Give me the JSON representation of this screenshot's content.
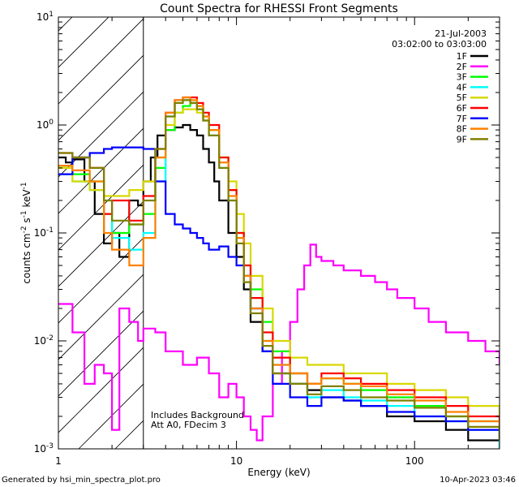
{
  "chart_data": {
    "type": "line",
    "title": "Count Spectra for RHESSI Front Segments",
    "xlabel": "Energy (keV)",
    "ylabel_parts": [
      "counts cm",
      "-2",
      " s",
      "-1",
      " keV",
      "-1"
    ],
    "xscale": "log",
    "yscale": "log",
    "xlim": [
      1,
      300
    ],
    "ylim": [
      0.001,
      10
    ],
    "x_ticks": [
      {
        "value": 1,
        "label": "1"
      },
      {
        "value": 10,
        "label": "10"
      },
      {
        "value": 100,
        "label": "100"
      }
    ],
    "y_ticks": [
      {
        "value": 0.001,
        "base": "10",
        "exp": "-3"
      },
      {
        "value": 0.01,
        "base": "10",
        "exp": "-2"
      },
      {
        "value": 0.1,
        "base": "10",
        "exp": "-1"
      },
      {
        "value": 1,
        "base": "10",
        "exp": "0"
      },
      {
        "value": 10,
        "base": "10",
        "exp": "1"
      }
    ],
    "hatched_region_x": [
      1,
      3
    ],
    "legend": {
      "placement": "top-right",
      "date": "21-Jul-2003",
      "time_range": "03:02:00 to 03:03:00"
    },
    "annotations": [
      "Includes Background",
      "Att A0, FDecim 3"
    ],
    "series": [
      {
        "name": "1F",
        "color": "#000000",
        "x": [
          1.0,
          1.1,
          1.2,
          1.4,
          1.6,
          1.8,
          2.0,
          2.2,
          2.5,
          2.8,
          3.0,
          3.3,
          3.6,
          4.0,
          4.5,
          5.0,
          5.5,
          6.0,
          6.5,
          7.0,
          7.5,
          8.0,
          9.0,
          10,
          11,
          12,
          14,
          16,
          20,
          25,
          30,
          40,
          50,
          70,
          100,
          150,
          200,
          300
        ],
        "y": [
          0.5,
          0.45,
          0.48,
          0.3,
          0.15,
          0.08,
          0.1,
          0.06,
          0.2,
          0.18,
          0.3,
          0.5,
          0.8,
          0.9,
          0.95,
          1.0,
          0.9,
          0.8,
          0.6,
          0.45,
          0.3,
          0.2,
          0.1,
          0.06,
          0.03,
          0.015,
          0.008,
          0.005,
          0.004,
          0.0035,
          0.003,
          0.0028,
          0.0025,
          0.002,
          0.0018,
          0.0015,
          0.0012,
          0.001
        ]
      },
      {
        "name": "2F",
        "color": "#ff00ff",
        "x": [
          1.0,
          1.2,
          1.4,
          1.6,
          1.8,
          2.0,
          2.2,
          2.5,
          2.8,
          3.0,
          3.5,
          4.0,
          5.0,
          6.0,
          7.0,
          8.0,
          9.0,
          10,
          11,
          12,
          13,
          14,
          16,
          18,
          20,
          22,
          24,
          26,
          28,
          30,
          35,
          40,
          50,
          60,
          70,
          80,
          100,
          120,
          150,
          200,
          250,
          300
        ],
        "y": [
          0.022,
          0.012,
          0.004,
          0.006,
          0.005,
          0.0015,
          0.02,
          0.015,
          0.01,
          0.013,
          0.012,
          0.008,
          0.006,
          0.007,
          0.005,
          0.003,
          0.004,
          0.003,
          0.002,
          0.0015,
          0.0012,
          0.002,
          0.004,
          0.008,
          0.015,
          0.03,
          0.05,
          0.078,
          0.06,
          0.055,
          0.05,
          0.045,
          0.04,
          0.035,
          0.03,
          0.025,
          0.02,
          0.015,
          0.012,
          0.01,
          0.008,
          0.006
        ]
      },
      {
        "name": "3F",
        "color": "#00ff00",
        "x": [
          1.0,
          1.2,
          1.5,
          1.8,
          2.0,
          2.5,
          3.0,
          3.5,
          4.0,
          4.5,
          5.0,
          5.5,
          6.0,
          6.5,
          7.0,
          8.0,
          9.0,
          10,
          11,
          12,
          14,
          16,
          20,
          25,
          30,
          40,
          50,
          70,
          100,
          150,
          200,
          300
        ],
        "y": [
          0.4,
          0.35,
          0.3,
          0.15,
          0.1,
          0.12,
          0.15,
          0.4,
          0.9,
          1.3,
          1.5,
          1.6,
          1.5,
          1.2,
          0.9,
          0.5,
          0.25,
          0.1,
          0.05,
          0.03,
          0.015,
          0.008,
          0.005,
          0.004,
          0.0045,
          0.004,
          0.0035,
          0.003,
          0.0025,
          0.002,
          0.0018,
          0.0012
        ]
      },
      {
        "name": "4F",
        "color": "#00ffff",
        "x": [
          1.0,
          1.2,
          1.5,
          1.8,
          2.0,
          2.5,
          3.0,
          3.5,
          4.0,
          4.5,
          5.0,
          5.5,
          6.0,
          6.5,
          7.0,
          8.0,
          9.0,
          10,
          11,
          12,
          14,
          16,
          20,
          25,
          30,
          40,
          50,
          70,
          100,
          150,
          200,
          300
        ],
        "y": [
          0.35,
          0.3,
          0.25,
          0.15,
          0.09,
          0.07,
          0.1,
          0.3,
          1.2,
          1.6,
          1.7,
          1.6,
          1.4,
          1.1,
          0.8,
          0.4,
          0.2,
          0.09,
          0.04,
          0.02,
          0.01,
          0.006,
          0.004,
          0.003,
          0.0035,
          0.003,
          0.0028,
          0.0025,
          0.002,
          0.0018,
          0.0015,
          0.001
        ]
      },
      {
        "name": "5F",
        "color": "#d8d800",
        "x": [
          1.0,
          1.2,
          1.5,
          1.8,
          2.0,
          2.5,
          3.0,
          3.5,
          4.0,
          4.5,
          5.0,
          5.5,
          6.0,
          6.5,
          7.0,
          8.0,
          9.0,
          10,
          11,
          12,
          14,
          16,
          20,
          25,
          30,
          40,
          50,
          70,
          100,
          150,
          200,
          300
        ],
        "y": [
          0.4,
          0.3,
          0.25,
          0.22,
          0.22,
          0.25,
          0.3,
          0.5,
          1.0,
          1.3,
          1.4,
          1.4,
          1.3,
          1.1,
          0.9,
          0.5,
          0.3,
          0.15,
          0.08,
          0.04,
          0.02,
          0.01,
          0.007,
          0.006,
          0.006,
          0.005,
          0.005,
          0.004,
          0.0035,
          0.003,
          0.0025,
          0.002
        ]
      },
      {
        "name": "6F",
        "color": "#ff0000",
        "x": [
          1.0,
          1.2,
          1.5,
          1.8,
          2.0,
          2.5,
          3.0,
          3.5,
          4.0,
          4.5,
          5.0,
          5.5,
          6.0,
          6.5,
          7.0,
          8.0,
          9.0,
          10,
          11,
          12,
          14,
          16,
          20,
          25,
          30,
          40,
          50,
          70,
          100,
          150,
          200,
          300
        ],
        "y": [
          0.55,
          0.5,
          0.4,
          0.15,
          0.2,
          0.13,
          0.22,
          0.6,
          1.3,
          1.7,
          1.8,
          1.8,
          1.6,
          1.3,
          1.0,
          0.5,
          0.25,
          0.1,
          0.05,
          0.025,
          0.012,
          0.007,
          0.005,
          0.004,
          0.005,
          0.0045,
          0.004,
          0.0035,
          0.003,
          0.0025,
          0.002,
          0.0015
        ]
      },
      {
        "name": "7F",
        "color": "#0000ff",
        "x": [
          1.0,
          1.2,
          1.5,
          1.8,
          2.0,
          2.5,
          3.0,
          3.5,
          4.0,
          4.5,
          5.0,
          5.5,
          6.0,
          6.5,
          7.0,
          8.0,
          9.0,
          10,
          11,
          12,
          14,
          16,
          20,
          25,
          30,
          40,
          50,
          70,
          100,
          150,
          200,
          300
        ],
        "y": [
          0.35,
          0.5,
          0.55,
          0.6,
          0.62,
          0.62,
          0.6,
          0.3,
          0.15,
          0.12,
          0.11,
          0.1,
          0.09,
          0.08,
          0.07,
          0.075,
          0.06,
          0.05,
          0.04,
          0.02,
          0.008,
          0.004,
          0.003,
          0.0025,
          0.003,
          0.0028,
          0.0025,
          0.0022,
          0.002,
          0.0018,
          0.0015,
          0.0012
        ]
      },
      {
        "name": "8F",
        "color": "#ff8000",
        "x": [
          1.0,
          1.2,
          1.5,
          1.8,
          2.0,
          2.5,
          3.0,
          3.5,
          4.0,
          4.5,
          5.0,
          5.5,
          6.0,
          6.5,
          7.0,
          8.0,
          9.0,
          10,
          11,
          12,
          14,
          16,
          20,
          25,
          30,
          40,
          50,
          70,
          100,
          150,
          200,
          300
        ],
        "y": [
          0.42,
          0.38,
          0.3,
          0.1,
          0.07,
          0.05,
          0.09,
          0.5,
          1.3,
          1.7,
          1.8,
          1.7,
          1.5,
          1.2,
          0.9,
          0.45,
          0.22,
          0.09,
          0.04,
          0.02,
          0.01,
          0.006,
          0.005,
          0.004,
          0.0045,
          0.004,
          0.0038,
          0.0032,
          0.0028,
          0.0022,
          0.0018,
          0.0013
        ]
      },
      {
        "name": "9F",
        "color": "#808000",
        "x": [
          1.0,
          1.2,
          1.5,
          1.8,
          2.0,
          2.5,
          3.0,
          3.5,
          4.0,
          4.5,
          5.0,
          5.5,
          6.0,
          6.5,
          7.0,
          8.0,
          9.0,
          10,
          11,
          12,
          14,
          16,
          20,
          25,
          30,
          40,
          50,
          70,
          100,
          150,
          200,
          300
        ],
        "y": [
          0.55,
          0.5,
          0.4,
          0.2,
          0.13,
          0.12,
          0.2,
          0.6,
          1.2,
          1.6,
          1.7,
          1.6,
          1.4,
          1.1,
          0.8,
          0.4,
          0.2,
          0.08,
          0.035,
          0.018,
          0.009,
          0.005,
          0.004,
          0.0032,
          0.0038,
          0.0035,
          0.003,
          0.0028,
          0.0024,
          0.002,
          0.0016,
          0.0012
        ]
      }
    ]
  },
  "footer": {
    "generator": "Generated by hsi_min_spectra_plot.pro",
    "timestamp": "10-Apr-2023 03:46"
  }
}
